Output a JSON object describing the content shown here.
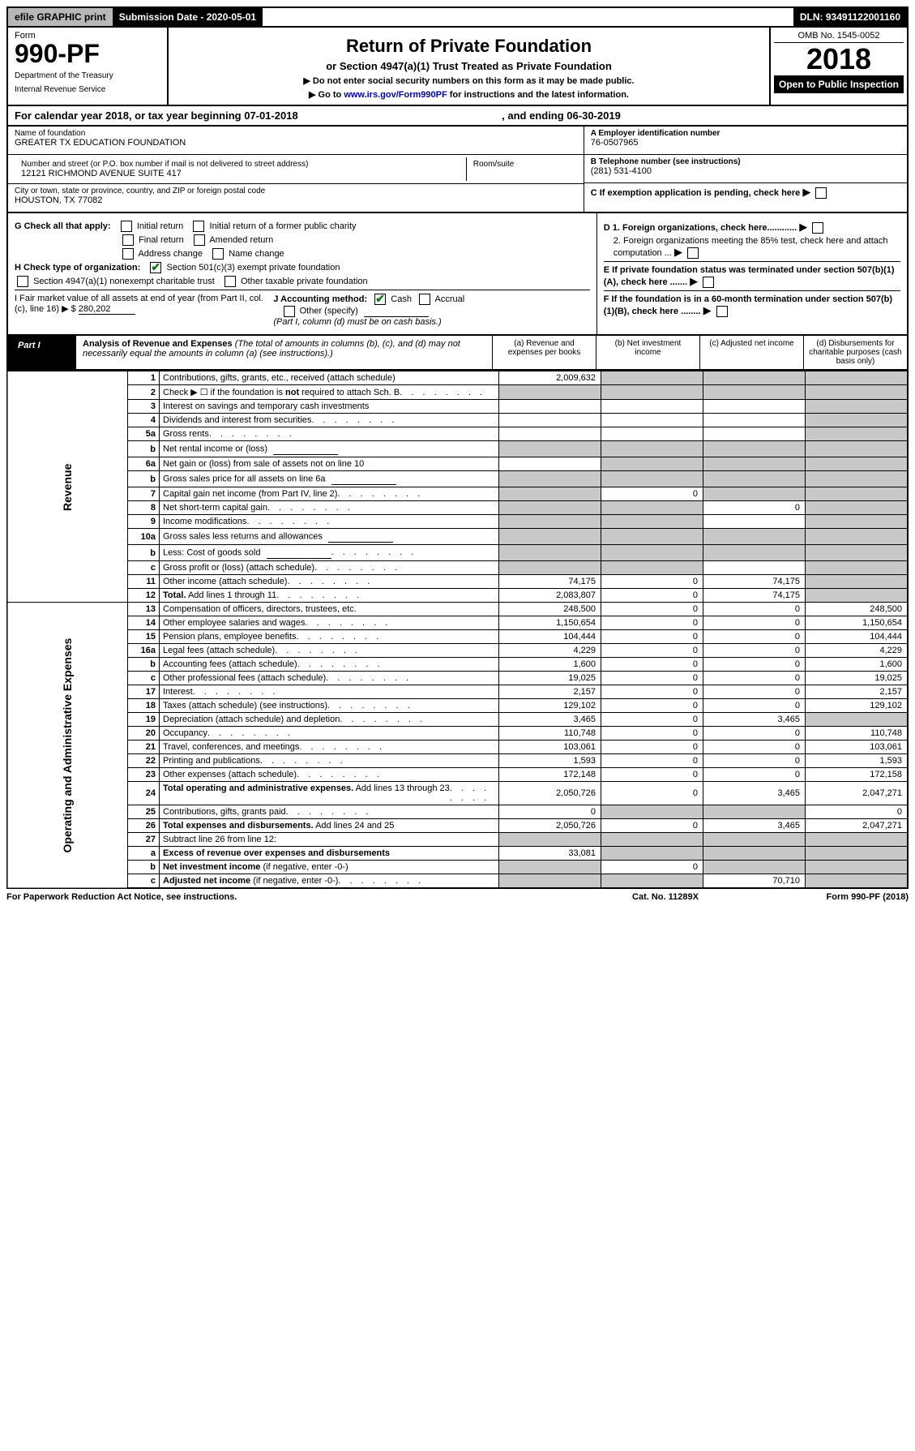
{
  "topbar": {
    "efile": "efile GRAPHIC print",
    "subdate": "Submission Date - 2020-05-01",
    "dln": "DLN: 93491122001160"
  },
  "header": {
    "form_label": "Form",
    "form_number": "990-PF",
    "dept1": "Department of the Treasury",
    "dept2": "Internal Revenue Service",
    "title": "Return of Private Foundation",
    "subtitle": "or Section 4947(a)(1) Trust Treated as Private Foundation",
    "note1": "▶ Do not enter social security numbers on this form as it may be made public.",
    "note2_pre": "▶ Go to ",
    "note2_link": "www.irs.gov/Form990PF",
    "note2_post": " for instructions and the latest information.",
    "omb": "OMB No. 1545-0052",
    "year": "2018",
    "open": "Open to Public Inspection"
  },
  "calyear": {
    "left": "For calendar year 2018, or tax year beginning 07-01-2018",
    "right": ", and ending 06-30-2019"
  },
  "info": {
    "name_lbl": "Name of foundation",
    "name_val": "GREATER TX EDUCATION FOUNDATION",
    "addr_lbl": "Number and street (or P.O. box number if mail is not delivered to street address)",
    "addr_val": "12121 RICHMOND AVENUE SUITE 417",
    "room_lbl": "Room/suite",
    "city_lbl": "City or town, state or province, country, and ZIP or foreign postal code",
    "city_val": "HOUSTON, TX  77082",
    "a_lbl": "A Employer identification number",
    "a_val": "76-0507965",
    "b_lbl": "B Telephone number (see instructions)",
    "b_val": "(281) 531-4100",
    "c_lbl": "C If exemption application is pending, check here",
    "d1": "D 1. Foreign organizations, check here............",
    "d2": "2. Foreign organizations meeting the 85% test, check here and attach computation ...",
    "e_lbl": "E  If private foundation status was terminated under section 507(b)(1)(A), check here .......",
    "f_lbl": "F  If the foundation is in a 60-month termination under section 507(b)(1)(B), check here ........"
  },
  "checks": {
    "g_lbl": "G Check all that apply:",
    "g1": "Initial return",
    "g2": "Initial return of a former public charity",
    "g3": "Final return",
    "g4": "Amended return",
    "g5": "Address change",
    "g6": "Name change",
    "h_lbl": "H Check type of organization:",
    "h1": "Section 501(c)(3) exempt private foundation",
    "h2": "Section 4947(a)(1) nonexempt charitable trust",
    "h3": "Other taxable private foundation",
    "i_lbl": "I Fair market value of all assets at end of year (from Part II, col. (c), line 16) ▶ $",
    "i_val": "280,202",
    "j_lbl": "J Accounting method:",
    "j1": "Cash",
    "j2": "Accrual",
    "j3": "Other (specify)",
    "j_note": "(Part I, column (d) must be on cash basis.)"
  },
  "part1": {
    "tab": "Part I",
    "title": "Analysis of Revenue and Expenses",
    "note": "(The total of amounts in columns (b), (c), and (d) may not necessarily equal the amounts in column (a) (see instructions).)",
    "col_a": "(a)   Revenue and expenses per books",
    "col_b": "(b)  Net investment income",
    "col_c": "(c)  Adjusted net income",
    "col_d": "(d)  Disbursements for charitable purposes (cash basis only)"
  },
  "side": {
    "rev": "Revenue",
    "exp": "Operating and Administrative Expenses"
  },
  "rows": [
    {
      "n": "1",
      "d": "Contributions, gifts, grants, etc., received (attach schedule)",
      "a": "2,009,632",
      "b": "grey",
      "c": "grey",
      "dd": "grey"
    },
    {
      "n": "2",
      "d": "Check ▶ ☐ if the foundation is <b>not</b> required to attach Sch. B",
      "a": "grey",
      "b": "grey",
      "c": "grey",
      "dd": "grey",
      "dots": true
    },
    {
      "n": "3",
      "d": "Interest on savings and temporary cash investments",
      "a": "",
      "b": "",
      "c": "",
      "dd": "grey"
    },
    {
      "n": "4",
      "d": "Dividends and interest from securities",
      "a": "",
      "b": "",
      "c": "",
      "dd": "grey",
      "dots": true
    },
    {
      "n": "5a",
      "d": "Gross rents",
      "a": "",
      "b": "",
      "c": "",
      "dd": "grey",
      "dots": true
    },
    {
      "n": "b",
      "d": "Net rental income or (loss)",
      "a": "grey",
      "b": "grey",
      "c": "grey",
      "dd": "grey",
      "box": true
    },
    {
      "n": "6a",
      "d": "Net gain or (loss) from sale of assets not on line 10",
      "a": "",
      "b": "grey",
      "c": "grey",
      "dd": "grey"
    },
    {
      "n": "b",
      "d": "Gross sales price for all assets on line 6a",
      "a": "grey",
      "b": "grey",
      "c": "grey",
      "dd": "grey",
      "box": true
    },
    {
      "n": "7",
      "d": "Capital gain net income (from Part IV, line 2)",
      "a": "grey",
      "b": "0",
      "c": "grey",
      "dd": "grey",
      "dots": true
    },
    {
      "n": "8",
      "d": "Net short-term capital gain",
      "a": "grey",
      "b": "grey",
      "c": "0",
      "dd": "grey",
      "dots": true
    },
    {
      "n": "9",
      "d": "Income modifications",
      "a": "grey",
      "b": "grey",
      "c": "",
      "dd": "grey",
      "dots": true
    },
    {
      "n": "10a",
      "d": "Gross sales less returns and allowances",
      "a": "grey",
      "b": "grey",
      "c": "grey",
      "dd": "grey",
      "box": true
    },
    {
      "n": "b",
      "d": "Less: Cost of goods sold",
      "a": "grey",
      "b": "grey",
      "c": "grey",
      "dd": "grey",
      "box": true,
      "dots": true
    },
    {
      "n": "c",
      "d": "Gross profit or (loss) (attach schedule)",
      "a": "grey",
      "b": "grey",
      "c": "",
      "dd": "grey",
      "dots": true
    },
    {
      "n": "11",
      "d": "Other income (attach schedule)",
      "a": "74,175",
      "b": "0",
      "c": "74,175",
      "dd": "grey",
      "dots": true
    },
    {
      "n": "12",
      "d": "<b>Total.</b> Add lines 1 through 11",
      "a": "2,083,807",
      "b": "0",
      "c": "74,175",
      "dd": "grey",
      "dots": true
    }
  ],
  "exprows": [
    {
      "n": "13",
      "d": "Compensation of officers, directors, trustees, etc.",
      "a": "248,500",
      "b": "0",
      "c": "0",
      "dd": "248,500"
    },
    {
      "n": "14",
      "d": "Other employee salaries and wages",
      "a": "1,150,654",
      "b": "0",
      "c": "0",
      "dd": "1,150,654",
      "dots": true
    },
    {
      "n": "15",
      "d": "Pension plans, employee benefits",
      "a": "104,444",
      "b": "0",
      "c": "0",
      "dd": "104,444",
      "dots": true
    },
    {
      "n": "16a",
      "d": "Legal fees (attach schedule)",
      "a": "4,229",
      "b": "0",
      "c": "0",
      "dd": "4,229",
      "dots": true
    },
    {
      "n": "b",
      "d": "Accounting fees (attach schedule)",
      "a": "1,600",
      "b": "0",
      "c": "0",
      "dd": "1,600",
      "dots": true
    },
    {
      "n": "c",
      "d": "Other professional fees (attach schedule)",
      "a": "19,025",
      "b": "0",
      "c": "0",
      "dd": "19,025",
      "dots": true
    },
    {
      "n": "17",
      "d": "Interest",
      "a": "2,157",
      "b": "0",
      "c": "0",
      "dd": "2,157",
      "dots": true
    },
    {
      "n": "18",
      "d": "Taxes (attach schedule) (see instructions)",
      "a": "129,102",
      "b": "0",
      "c": "0",
      "dd": "129,102",
      "dots": true
    },
    {
      "n": "19",
      "d": "Depreciation (attach schedule) and depletion",
      "a": "3,465",
      "b": "0",
      "c": "3,465",
      "dd": "grey",
      "dots": true
    },
    {
      "n": "20",
      "d": "Occupancy",
      "a": "110,748",
      "b": "0",
      "c": "0",
      "dd": "110,748",
      "dots": true
    },
    {
      "n": "21",
      "d": "Travel, conferences, and meetings",
      "a": "103,061",
      "b": "0",
      "c": "0",
      "dd": "103,061",
      "dots": true
    },
    {
      "n": "22",
      "d": "Printing and publications",
      "a": "1,593",
      "b": "0",
      "c": "0",
      "dd": "1,593",
      "dots": true
    },
    {
      "n": "23",
      "d": "Other expenses (attach schedule)",
      "a": "172,148",
      "b": "0",
      "c": "0",
      "dd": "172,158",
      "dots": true
    },
    {
      "n": "24",
      "d": "<b>Total operating and administrative expenses.</b> Add lines 13 through 23",
      "a": "2,050,726",
      "b": "0",
      "c": "3,465",
      "dd": "2,047,271",
      "dots": true
    },
    {
      "n": "25",
      "d": "Contributions, gifts, grants paid",
      "a": "0",
      "b": "grey",
      "c": "grey",
      "dd": "0",
      "dots": true
    },
    {
      "n": "26",
      "d": "<b>Total expenses and disbursements.</b> Add lines 24 and 25",
      "a": "2,050,726",
      "b": "0",
      "c": "3,465",
      "dd": "2,047,271"
    },
    {
      "n": "27",
      "d": "Subtract line 26 from line 12:",
      "a": "grey",
      "b": "grey",
      "c": "grey",
      "dd": "grey"
    },
    {
      "n": "a",
      "d": "<b>Excess of revenue over expenses and disbursements</b>",
      "a": "33,081",
      "b": "grey",
      "c": "grey",
      "dd": "grey"
    },
    {
      "n": "b",
      "d": "<b>Net investment income</b> (if negative, enter -0-)",
      "a": "grey",
      "b": "0",
      "c": "grey",
      "dd": "grey"
    },
    {
      "n": "c",
      "d": "<b>Adjusted net income</b> (if negative, enter -0-)",
      "a": "grey",
      "b": "grey",
      "c": "70,710",
      "dd": "grey",
      "dots": true
    }
  ],
  "footer": {
    "l": "For Paperwork Reduction Act Notice, see instructions.",
    "c": "Cat. No. 11289X",
    "r": "Form 990-PF (2018)"
  }
}
